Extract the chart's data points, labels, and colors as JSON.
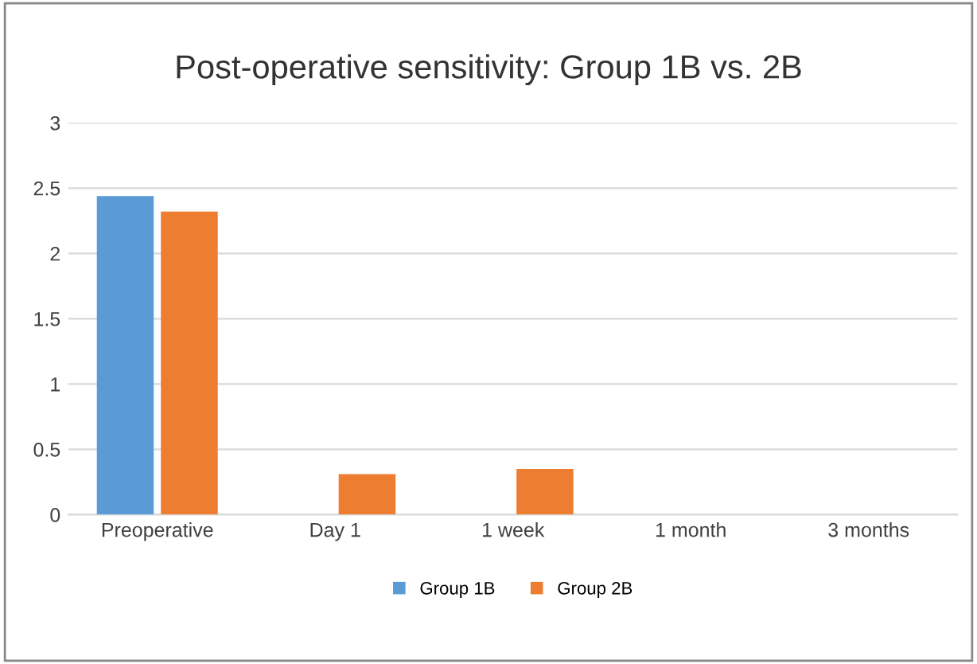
{
  "chart_data": {
    "type": "bar",
    "title": "Post-operative sensitivity: Group 1B vs. 2B",
    "categories": [
      "Preoperative",
      "Day 1",
      "1 week",
      "1 month",
      "3 months"
    ],
    "series": [
      {
        "name": "Group 1B",
        "color": "#5b9bd5",
        "values": [
          2.44,
          0,
          0,
          0,
          0
        ]
      },
      {
        "name": "Group 2B",
        "color": "#ed7d31",
        "values": [
          2.32,
          0.31,
          0.35,
          0,
          0
        ]
      }
    ],
    "ylim": [
      0,
      3
    ],
    "yticks": [
      0,
      0.5,
      1,
      1.5,
      2,
      2.5,
      3
    ],
    "grid": "y",
    "legend": "bottom"
  }
}
